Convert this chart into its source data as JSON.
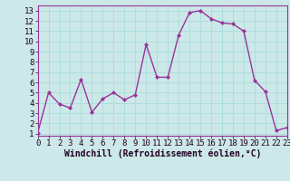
{
  "x": [
    0,
    1,
    2,
    3,
    4,
    5,
    6,
    7,
    8,
    9,
    10,
    11,
    12,
    13,
    14,
    15,
    16,
    17,
    18,
    19,
    20,
    21,
    22,
    23
  ],
  "y": [
    1.1,
    5.0,
    3.9,
    3.5,
    6.3,
    3.1,
    4.4,
    5.0,
    4.3,
    4.8,
    9.7,
    6.5,
    6.5,
    10.6,
    12.8,
    13.0,
    12.2,
    11.8,
    11.7,
    11.0,
    6.2,
    5.1,
    1.3,
    1.6
  ],
  "line_color": "#993399",
  "marker": "D",
  "marker_size": 2.0,
  "linewidth": 1.0,
  "xlabel": "Windchill (Refroidissement éolien,°C)",
  "xlabel_fontsize": 7,
  "xlim": [
    0,
    23
  ],
  "ylim": [
    0.8,
    13.5
  ],
  "yticks": [
    1,
    2,
    3,
    4,
    5,
    6,
    7,
    8,
    9,
    10,
    11,
    12,
    13
  ],
  "xticks": [
    0,
    1,
    2,
    3,
    4,
    5,
    6,
    7,
    8,
    9,
    10,
    11,
    12,
    13,
    14,
    15,
    16,
    17,
    18,
    19,
    20,
    21,
    22,
    23
  ],
  "grid_color": "#aadddd",
  "bg_color": "#cce8e8",
  "tick_fontsize": 6.5,
  "spine_color": "#993399"
}
